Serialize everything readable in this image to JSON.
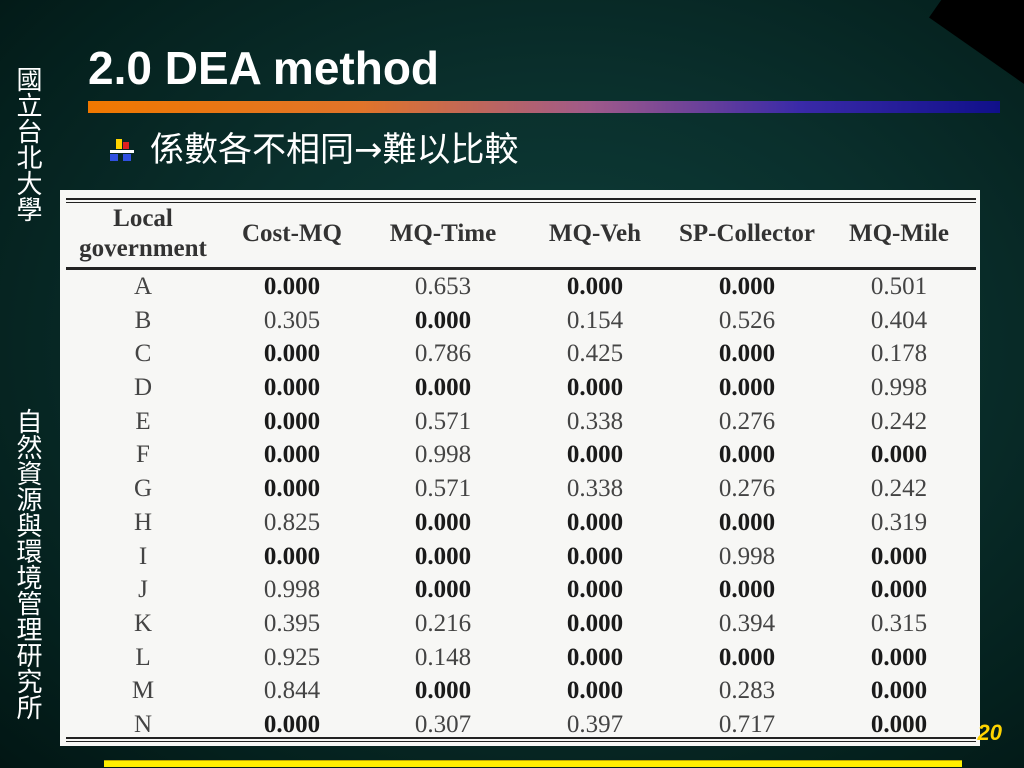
{
  "sidebar": {
    "university": "國立台北大學",
    "institute": "自然資源與環境管理研究所"
  },
  "slide": {
    "title": "2.0 DEA method",
    "bullet": "係數各不相同→難以比較",
    "page_number": "20"
  },
  "colors": {
    "title_rule_start": "#f07800",
    "title_rule_end": "#10108a",
    "page_number": "#ffd400",
    "bottom_bar": "#ffee00"
  },
  "table": {
    "headers": [
      "Local government",
      "Cost-MQ",
      "MQ-Time",
      "MQ-Veh",
      "SP-Collector",
      "MQ-Mile"
    ],
    "rows": [
      {
        "label": "A",
        "values": [
          "0.000",
          "0.653",
          "0.000",
          "0.000",
          "0.501"
        ],
        "bold": [
          true,
          false,
          true,
          true,
          false
        ]
      },
      {
        "label": "B",
        "values": [
          "0.305",
          "0.000",
          "0.154",
          "0.526",
          "0.404"
        ],
        "bold": [
          false,
          true,
          false,
          false,
          false
        ]
      },
      {
        "label": "C",
        "values": [
          "0.000",
          "0.786",
          "0.425",
          "0.000",
          "0.178"
        ],
        "bold": [
          true,
          false,
          false,
          true,
          false
        ]
      },
      {
        "label": "D",
        "values": [
          "0.000",
          "0.000",
          "0.000",
          "0.000",
          "0.998"
        ],
        "bold": [
          true,
          true,
          true,
          true,
          false
        ]
      },
      {
        "label": "E",
        "values": [
          "0.000",
          "0.571",
          "0.338",
          "0.276",
          "0.242"
        ],
        "bold": [
          true,
          false,
          false,
          false,
          false
        ]
      },
      {
        "label": "F",
        "values": [
          "0.000",
          "0.998",
          "0.000",
          "0.000",
          "0.000"
        ],
        "bold": [
          true,
          false,
          true,
          true,
          true
        ]
      },
      {
        "label": "G",
        "values": [
          "0.000",
          "0.571",
          "0.338",
          "0.276",
          "0.242"
        ],
        "bold": [
          true,
          false,
          false,
          false,
          false
        ]
      },
      {
        "label": "H",
        "values": [
          "0.825",
          "0.000",
          "0.000",
          "0.000",
          "0.319"
        ],
        "bold": [
          false,
          true,
          true,
          true,
          false
        ]
      },
      {
        "label": "I",
        "values": [
          "0.000",
          "0.000",
          "0.000",
          "0.998",
          "0.000"
        ],
        "bold": [
          true,
          true,
          true,
          false,
          true
        ]
      },
      {
        "label": "J",
        "values": [
          "0.998",
          "0.000",
          "0.000",
          "0.000",
          "0.000"
        ],
        "bold": [
          false,
          true,
          true,
          true,
          true
        ]
      },
      {
        "label": "K",
        "values": [
          "0.395",
          "0.216",
          "0.000",
          "0.394",
          "0.315"
        ],
        "bold": [
          false,
          false,
          true,
          false,
          false
        ]
      },
      {
        "label": "L",
        "values": [
          "0.925",
          "0.148",
          "0.000",
          "0.000",
          "0.000"
        ],
        "bold": [
          false,
          false,
          true,
          true,
          true
        ]
      },
      {
        "label": "M",
        "values": [
          "0.844",
          "0.000",
          "0.000",
          "0.283",
          "0.000"
        ],
        "bold": [
          false,
          true,
          true,
          false,
          true
        ]
      },
      {
        "label": "N",
        "values": [
          "0.000",
          "0.307",
          "0.397",
          "0.717",
          "0.000"
        ],
        "bold": [
          true,
          false,
          false,
          false,
          true
        ]
      }
    ]
  }
}
